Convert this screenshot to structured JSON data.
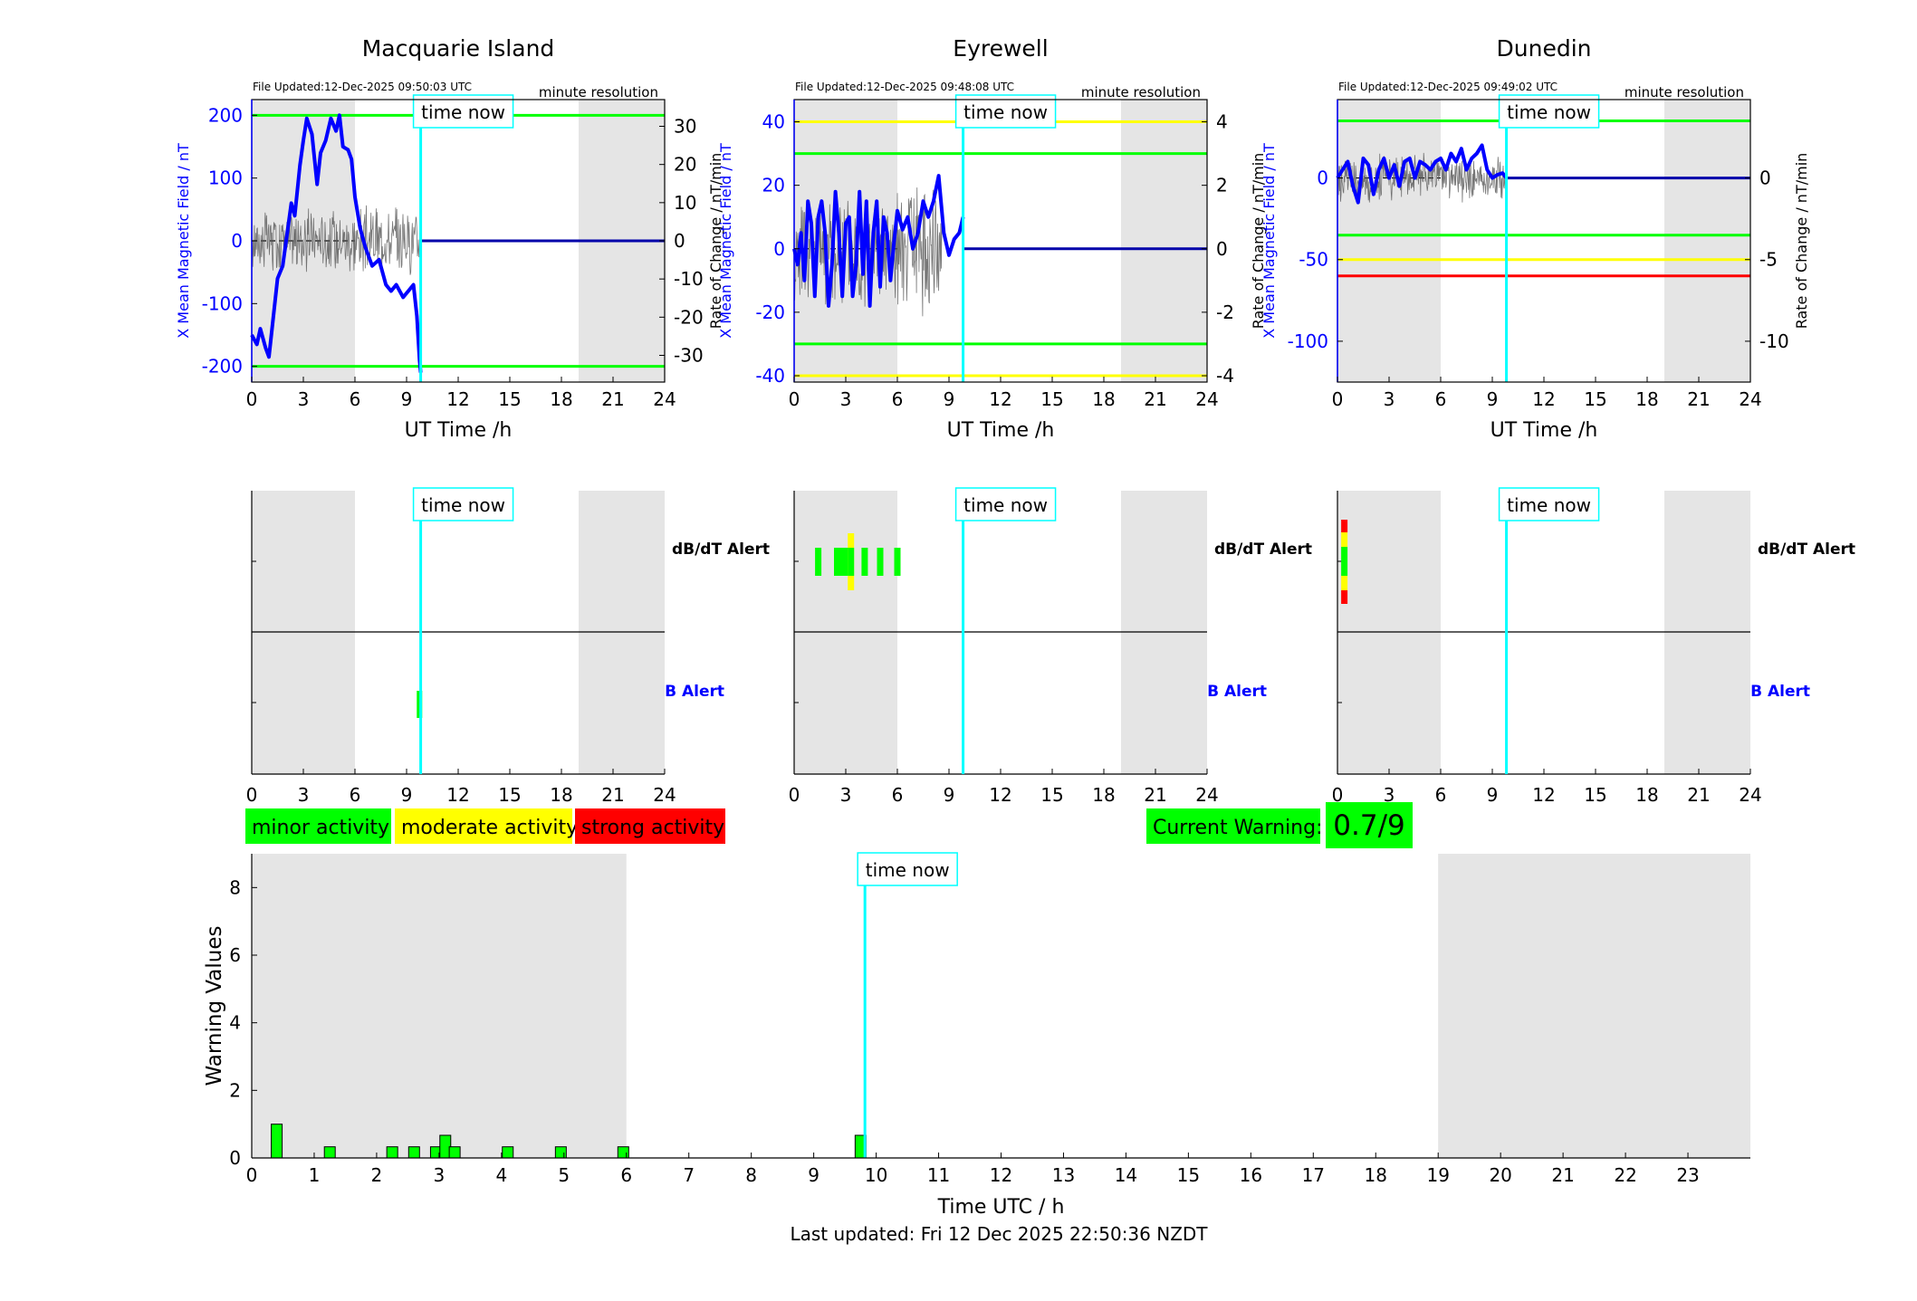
{
  "footer": {
    "last_updated": "Last updated: Fri 12 Dec 2025 22:50:36 NZDT"
  },
  "time_now_label": "time now",
  "time_now_h": 9.82,
  "daytime_shading_h": [
    [
      0,
      6
    ],
    [
      19,
      24
    ]
  ],
  "colors": {
    "blue": "#0000ff",
    "green": "#00ff00",
    "yellow": "#ffff00",
    "red": "#ff0000",
    "cyan": "#00ffff",
    "gray": "#e5e5e5"
  },
  "legend": {
    "minor": "minor activity",
    "moderate": "moderate activity",
    "strong": "strong activity"
  },
  "current_warning": {
    "label": "Current Warning:",
    "value": "0.7/9"
  },
  "chart_data": [
    {
      "type": "line",
      "station": "Macquarie Island",
      "title": "Macquarie Island",
      "file_updated": "File Updated:12-Dec-2025 09:50:03 UTC",
      "resolution": "minute resolution",
      "xlabel": "UT Time /h",
      "ylabel_left": "X Mean Magnetic Field / nT",
      "ylabel_right": "Rate of Change / nT/min",
      "xlim": [
        0,
        24
      ],
      "xticks": [
        0,
        3,
        6,
        9,
        12,
        15,
        18,
        21,
        24
      ],
      "ylim_left": [
        -225,
        225
      ],
      "yticks_left": [
        -200,
        -100,
        0,
        100,
        200
      ],
      "ylim_right": [
        -37,
        37
      ],
      "yticks_right": [
        -30,
        -20,
        -10,
        0,
        10,
        20,
        30
      ],
      "thresholds_left": [
        {
          "value": 200,
          "color": "#00ff00"
        },
        {
          "value": -200,
          "color": "#00ff00"
        }
      ],
      "series_field_x": [
        0,
        0.3,
        0.5,
        0.8,
        1.0,
        1.3,
        1.5,
        1.8,
        2.1,
        2.3,
        2.5,
        2.8,
        3.0,
        3.2,
        3.5,
        3.8,
        4.0,
        4.3,
        4.6,
        4.9,
        5.1,
        5.3,
        5.6,
        5.8,
        6.0,
        6.3,
        6.6,
        7.0,
        7.4,
        7.8,
        8.1,
        8.4,
        8.8,
        9.1,
        9.4,
        9.6,
        9.75,
        9.82
      ],
      "series_field_y": [
        -150,
        -165,
        -140,
        -170,
        -185,
        -110,
        -60,
        -40,
        20,
        60,
        40,
        120,
        160,
        195,
        170,
        90,
        140,
        160,
        195,
        175,
        200,
        150,
        145,
        130,
        70,
        20,
        -10,
        -40,
        -30,
        -70,
        -80,
        -70,
        -90,
        -80,
        -70,
        -120,
        -190,
        -210
      ],
      "rate_noise_amp": 10,
      "rate_noise_end_h": 9.82
    },
    {
      "type": "line",
      "station": "Eyrewell",
      "title": "Eyrewell",
      "file_updated": "File Updated:12-Dec-2025 09:48:08 UTC",
      "resolution": "minute resolution",
      "xlabel": "UT Time /h",
      "ylabel_left": "X Mean Magnetic Field / nT",
      "ylabel_right": "Rate of Change / nT/min",
      "xlim": [
        0,
        24
      ],
      "xticks": [
        0,
        3,
        6,
        9,
        12,
        15,
        18,
        21,
        24
      ],
      "ylim_left": [
        -42,
        47
      ],
      "yticks_left": [
        -40,
        -20,
        0,
        20,
        40
      ],
      "ylim_right": [
        -4.2,
        4.7
      ],
      "yticks_right": [
        -4,
        -2,
        0,
        2,
        4
      ],
      "thresholds_left": [
        {
          "value": 40,
          "color": "#ffff00"
        },
        {
          "value": 30,
          "color": "#00ff00"
        },
        {
          "value": -30,
          "color": "#00ff00"
        },
        {
          "value": -40,
          "color": "#ffff00"
        }
      ],
      "series_field_x": [
        0,
        0.2,
        0.4,
        0.6,
        0.8,
        1.0,
        1.2,
        1.4,
        1.6,
        1.8,
        2.0,
        2.2,
        2.4,
        2.6,
        2.8,
        3.0,
        3.2,
        3.4,
        3.6,
        3.8,
        4.0,
        4.2,
        4.4,
        4.6,
        4.8,
        5.0,
        5.2,
        5.4,
        5.6,
        5.8,
        6.0,
        6.3,
        6.6,
        6.9,
        7.2,
        7.5,
        7.8,
        8.1,
        8.4,
        8.7,
        9.0,
        9.3,
        9.6,
        9.82
      ],
      "series_field_y": [
        0,
        -5,
        5,
        -10,
        15,
        8,
        -15,
        10,
        15,
        5,
        -18,
        -5,
        18,
        5,
        -15,
        8,
        10,
        -15,
        -5,
        18,
        -8,
        15,
        -18,
        5,
        15,
        -12,
        10,
        5,
        -10,
        2,
        12,
        6,
        10,
        0,
        5,
        15,
        10,
        15,
        23,
        5,
        -2,
        3,
        5,
        10
      ],
      "rate_noise_amp": 2.2,
      "rate_noise_end_h": 8.6
    },
    {
      "type": "line",
      "station": "Dunedin",
      "title": "Dunedin",
      "file_updated": "File Updated:12-Dec-2025 09:49:02 UTC",
      "resolution": "minute resolution",
      "xlabel": "UT Time /h",
      "ylabel_left": "X Mean Magnetic Field / nT",
      "ylabel_right": "Rate of Change / nT/min",
      "xlim": [
        0,
        24
      ],
      "xticks": [
        0,
        3,
        6,
        9,
        12,
        15,
        18,
        21,
        24
      ],
      "ylim_left": [
        -125,
        48
      ],
      "yticks_left": [
        -100,
        -50,
        0
      ],
      "ylim_right": [
        -12.5,
        4.8
      ],
      "yticks_right": [
        -10,
        -5,
        0
      ],
      "thresholds_left": [
        {
          "value": 35,
          "color": "#00ff00"
        },
        {
          "value": -35,
          "color": "#00ff00"
        },
        {
          "value": -50,
          "color": "#ffff00"
        },
        {
          "value": -60,
          "color": "#ff0000"
        }
      ],
      "series_field_x": [
        0,
        0.3,
        0.6,
        0.9,
        1.2,
        1.5,
        1.8,
        2.1,
        2.4,
        2.7,
        3.0,
        3.3,
        3.6,
        3.9,
        4.2,
        4.5,
        4.8,
        5.1,
        5.4,
        5.7,
        6.0,
        6.3,
        6.6,
        6.9,
        7.2,
        7.5,
        7.8,
        8.1,
        8.4,
        8.7,
        9.0,
        9.3,
        9.6,
        9.82
      ],
      "series_field_y": [
        0,
        5,
        10,
        -5,
        -15,
        12,
        8,
        -10,
        5,
        12,
        0,
        8,
        -5,
        10,
        12,
        0,
        10,
        8,
        5,
        10,
        12,
        5,
        15,
        10,
        18,
        5,
        12,
        15,
        20,
        5,
        0,
        2,
        3,
        0
      ],
      "rate_noise_amp": 1.6,
      "rate_noise_end_h": 9.82
    }
  ],
  "alert_charts": [
    {
      "station": "Macquarie Island",
      "dbdt_label": "dB/dT Alert",
      "b_label": "B Alert",
      "xticks": [
        0,
        3,
        6,
        9,
        12,
        15,
        18,
        21,
        24
      ],
      "dbdt_marks": [],
      "b_marks": [
        {
          "t": 9.75,
          "level": "minor"
        }
      ]
    },
    {
      "station": "Eyrewell",
      "dbdt_label": "dB/dT Alert",
      "b_label": "B Alert",
      "xticks": [
        0,
        3,
        6,
        9,
        12,
        15,
        18,
        21,
        24
      ],
      "dbdt_marks": [
        {
          "t": 1.4,
          "level": "minor"
        },
        {
          "t": 2.5,
          "level": "minor"
        },
        {
          "t": 2.8,
          "level": "minor"
        },
        {
          "t": 3.05,
          "level": "minor"
        },
        {
          "t": 3.3,
          "level": "moderate"
        },
        {
          "t": 4.1,
          "level": "minor"
        },
        {
          "t": 5.0,
          "level": "minor"
        },
        {
          "t": 6.0,
          "level": "minor"
        }
      ],
      "b_marks": []
    },
    {
      "station": "Dunedin",
      "dbdt_label": "dB/dT Alert",
      "b_label": "B Alert",
      "xticks": [
        0,
        3,
        6,
        9,
        12,
        15,
        18,
        21,
        24
      ],
      "dbdt_marks": [
        {
          "t": 0.4,
          "level": "strong"
        }
      ],
      "b_marks": []
    }
  ],
  "warning_chart": {
    "type": "bar",
    "xlabel": "Time UTC / h",
    "ylabel": "Warning Values",
    "xlim": [
      0,
      24
    ],
    "ylim": [
      0,
      9
    ],
    "yticks": [
      0,
      2,
      4,
      6,
      8
    ],
    "xticks": [
      0,
      1,
      2,
      3,
      4,
      5,
      6,
      7,
      8,
      9,
      10,
      11,
      12,
      13,
      14,
      15,
      16,
      17,
      18,
      19,
      20,
      21,
      22,
      23
    ],
    "x": [
      0.4,
      1.25,
      2.25,
      2.6,
      2.95,
      3.1,
      3.25,
      4.1,
      4.95,
      5.95,
      9.75
    ],
    "values": [
      1.0,
      0.33,
      0.33,
      0.33,
      0.33,
      0.67,
      0.33,
      0.33,
      0.33,
      0.33,
      0.67
    ]
  }
}
